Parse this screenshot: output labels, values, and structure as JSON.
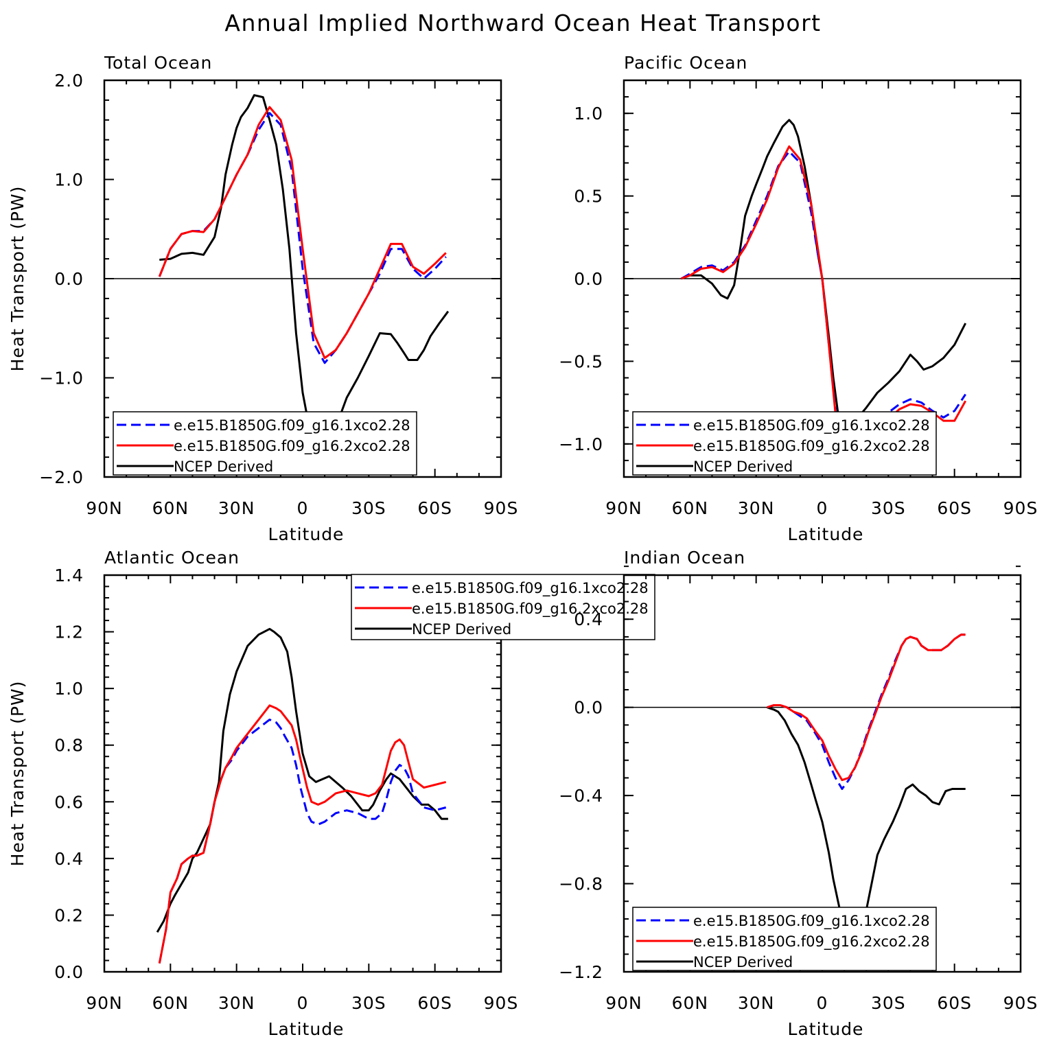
{
  "figure_title": "Annual Implied Northward Ocean Heat Transport",
  "colors": {
    "series1": "#0000ff",
    "series2": "#ff0000",
    "series3": "#000000",
    "zero_line": "#000000"
  },
  "chart_data": [
    {
      "type": "line",
      "panel_title": "Total Ocean",
      "xlabel": "Latitude",
      "ylabel": "Heat Transport (PW)",
      "x_ticks": [
        90,
        60,
        30,
        0,
        -30,
        -60,
        -90
      ],
      "x_tick_labels": [
        "90N",
        "60N",
        "30N",
        "0",
        "30S",
        "60S",
        "90S"
      ],
      "xlim": [
        90,
        -90
      ],
      "ylim": [
        -2.0,
        2.0
      ],
      "y_ticks": [
        -2.0,
        -1.0,
        0.0,
        1.0,
        2.0
      ],
      "y_tick_labels": [
        "−2.0",
        "−1.0",
        "0.0",
        "1.0",
        "2.0"
      ],
      "zero_line": true,
      "legend_position": "bottom-left",
      "series": [
        {
          "name": "e.e15.B1850G.f09_g16.1xco2.28",
          "style": "dashed",
          "x": [
            65,
            60,
            55,
            50,
            45,
            40,
            35,
            30,
            25,
            20,
            15,
            10,
            5,
            0,
            -5,
            -10,
            -15,
            -20,
            -25,
            -30,
            -35,
            -40,
            -45,
            -50,
            -55,
            -60,
            -65
          ],
          "y": [
            0.02,
            0.3,
            0.45,
            0.48,
            0.48,
            0.6,
            0.82,
            1.05,
            1.25,
            1.5,
            1.67,
            1.55,
            1.1,
            0.1,
            -0.65,
            -0.85,
            -0.72,
            -0.55,
            -0.35,
            -0.15,
            0.05,
            0.3,
            0.3,
            0.1,
            0.0,
            0.1,
            0.22
          ]
        },
        {
          "name": "e.e15.B1850G.f09_g16.2xco2.28",
          "style": "solid",
          "x": [
            65,
            60,
            55,
            50,
            45,
            40,
            35,
            30,
            25,
            20,
            15,
            10,
            5,
            0,
            -5,
            -10,
            -15,
            -20,
            -25,
            -30,
            -35,
            -40,
            -45,
            -50,
            -55,
            -60,
            -65
          ],
          "y": [
            0.02,
            0.3,
            0.45,
            0.48,
            0.47,
            0.6,
            0.82,
            1.05,
            1.25,
            1.55,
            1.73,
            1.6,
            1.2,
            0.3,
            -0.55,
            -0.8,
            -0.72,
            -0.55,
            -0.35,
            -0.15,
            0.1,
            0.35,
            0.35,
            0.12,
            0.05,
            0.15,
            0.26
          ]
        },
        {
          "name": "NCEP Derived",
          "style": "solid",
          "x": [
            65,
            60,
            55,
            50,
            45,
            40,
            37,
            35,
            32,
            30,
            28,
            25,
            22,
            18,
            15,
            12,
            9,
            6,
            3,
            0,
            -3,
            -5,
            -8,
            -12,
            -15,
            -20,
            -25,
            -30,
            -35,
            -40,
            -43,
            -46,
            -48,
            -52,
            -55,
            -58,
            -62,
            -66
          ],
          "y": [
            0.19,
            0.2,
            0.25,
            0.26,
            0.24,
            0.42,
            0.72,
            1.05,
            1.35,
            1.52,
            1.63,
            1.72,
            1.85,
            1.83,
            1.6,
            1.35,
            0.9,
            0.3,
            -0.55,
            -1.15,
            -1.5,
            -1.65,
            -1.68,
            -1.6,
            -1.5,
            -1.2,
            -1.0,
            -0.78,
            -0.55,
            -0.56,
            -0.65,
            -0.75,
            -0.82,
            -0.82,
            -0.72,
            -0.58,
            -0.45,
            -0.33
          ]
        }
      ]
    },
    {
      "type": "line",
      "panel_title": "Pacific Ocean",
      "xlabel": "Latitude",
      "ylabel": "",
      "x_ticks": [
        90,
        60,
        30,
        0,
        -30,
        -60,
        -90
      ],
      "x_tick_labels": [
        "90N",
        "60N",
        "30N",
        "0",
        "30S",
        "60S",
        "90S"
      ],
      "xlim": [
        90,
        -90
      ],
      "ylim": [
        -1.2,
        1.2
      ],
      "y_ticks": [
        -1.0,
        -0.5,
        0.0,
        0.5,
        1.0
      ],
      "y_tick_labels": [
        "−1.0",
        "−0.5",
        "0.0",
        "0.5",
        "1.0"
      ],
      "zero_line": true,
      "legend_position": "bottom-left",
      "series": [
        {
          "name": "e.e15.B1850G.f09_g16.1xco2.28",
          "style": "dashed",
          "x": [
            64,
            60,
            55,
            50,
            45,
            40,
            35,
            30,
            25,
            20,
            15,
            10,
            5,
            2,
            0,
            -3,
            -6,
            -10,
            -15,
            -20,
            -25,
            -30,
            -35,
            -40,
            -45,
            -50,
            -55,
            -60,
            -65
          ],
          "y": [
            0.0,
            0.03,
            0.07,
            0.08,
            0.05,
            0.1,
            0.2,
            0.35,
            0.5,
            0.68,
            0.77,
            0.7,
            0.4,
            0.15,
            0.0,
            -0.4,
            -0.8,
            -1.0,
            -1.02,
            -0.95,
            -0.88,
            -0.81,
            -0.76,
            -0.73,
            -0.75,
            -0.8,
            -0.84,
            -0.8,
            -0.7
          ]
        },
        {
          "name": "e.e15.B1850G.f09_g16.2xco2.28",
          "style": "solid",
          "x": [
            64,
            60,
            55,
            50,
            45,
            40,
            35,
            30,
            25,
            20,
            15,
            10,
            5,
            2,
            0,
            -3,
            -6,
            -10,
            -15,
            -20,
            -25,
            -30,
            -35,
            -40,
            -45,
            -50,
            -55,
            -60,
            -65
          ],
          "y": [
            0.0,
            0.02,
            0.06,
            0.07,
            0.04,
            0.09,
            0.19,
            0.33,
            0.48,
            0.67,
            0.8,
            0.72,
            0.45,
            0.18,
            0.0,
            -0.4,
            -0.82,
            -1.03,
            -1.08,
            -1.01,
            -0.93,
            -0.85,
            -0.79,
            -0.76,
            -0.77,
            -0.81,
            -0.86,
            -0.86,
            -0.74
          ]
        },
        {
          "name": "NCEP Derived",
          "style": "solid",
          "x": [
            64,
            60,
            55,
            50,
            46,
            43,
            40,
            37,
            35,
            32,
            30,
            27,
            25,
            22,
            18,
            15,
            13,
            11,
            8,
            5,
            2,
            0,
            -3,
            -5,
            -7,
            -10,
            -15,
            -20,
            -25,
            -30,
            -35,
            -40,
            -43,
            -46,
            -50,
            -55,
            -60,
            -65
          ],
          "y": [
            0.0,
            0.02,
            0.02,
            -0.03,
            -0.1,
            -0.12,
            -0.04,
            0.2,
            0.38,
            0.5,
            0.57,
            0.67,
            0.74,
            0.82,
            0.92,
            0.96,
            0.93,
            0.86,
            0.68,
            0.45,
            0.15,
            0.0,
            -0.35,
            -0.6,
            -0.8,
            -0.92,
            -0.86,
            -0.78,
            -0.69,
            -0.63,
            -0.56,
            -0.46,
            -0.5,
            -0.55,
            -0.53,
            -0.48,
            -0.4,
            -0.27
          ]
        }
      ]
    },
    {
      "type": "line",
      "panel_title": "Atlantic Ocean",
      "xlabel": "Latitude",
      "ylabel": "Heat Transport (PW)",
      "x_ticks": [
        90,
        60,
        30,
        0,
        -30,
        -60,
        -90
      ],
      "x_tick_labels": [
        "90N",
        "60N",
        "30N",
        "0",
        "30S",
        "60S",
        "90S"
      ],
      "xlim": [
        90,
        -90
      ],
      "ylim": [
        0.0,
        1.4
      ],
      "y_ticks": [
        0.0,
        0.2,
        0.4,
        0.6,
        0.8,
        1.0,
        1.2,
        1.4
      ],
      "y_tick_labels": [
        "0.0",
        "0.2",
        "0.4",
        "0.6",
        "0.8",
        "1.0",
        "1.2",
        "1.4"
      ],
      "zero_line": false,
      "legend_position": "top-right",
      "series": [
        {
          "name": "e.e15.B1850G.f09_g16.1xco2.28",
          "style": "dashed",
          "x": [
            65,
            62,
            60,
            57,
            55,
            52,
            50,
            48,
            45,
            42,
            40,
            37,
            35,
            32,
            30,
            25,
            20,
            15,
            12,
            10,
            8,
            5,
            3,
            1,
            -2,
            -4,
            -7,
            -10,
            -15,
            -20,
            -25,
            -30,
            -33,
            -36,
            -38,
            -40,
            -42,
            -44,
            -46,
            -48,
            -50,
            -55,
            -60,
            -65
          ],
          "y": [
            0.03,
            0.15,
            0.28,
            0.33,
            0.38,
            0.4,
            0.41,
            0.41,
            0.42,
            0.52,
            0.6,
            0.68,
            0.72,
            0.75,
            0.78,
            0.83,
            0.86,
            0.89,
            0.88,
            0.86,
            0.83,
            0.79,
            0.73,
            0.65,
            0.56,
            0.53,
            0.52,
            0.53,
            0.56,
            0.57,
            0.56,
            0.54,
            0.54,
            0.56,
            0.61,
            0.67,
            0.71,
            0.73,
            0.72,
            0.69,
            0.63,
            0.58,
            0.57,
            0.58
          ]
        },
        {
          "name": "e.e15.B1850G.f09_g16.2xco2.28",
          "style": "solid",
          "x": [
            65,
            62,
            60,
            57,
            55,
            52,
            50,
            48,
            45,
            42,
            40,
            37,
            35,
            32,
            30,
            25,
            20,
            15,
            12,
            10,
            8,
            5,
            3,
            1,
            -2,
            -4,
            -7,
            -10,
            -15,
            -20,
            -25,
            -30,
            -33,
            -36,
            -38,
            -40,
            -42,
            -44,
            -46,
            -48,
            -50,
            -55,
            -60,
            -65
          ],
          "y": [
            0.03,
            0.15,
            0.28,
            0.33,
            0.38,
            0.4,
            0.41,
            0.41,
            0.42,
            0.52,
            0.6,
            0.68,
            0.72,
            0.76,
            0.79,
            0.84,
            0.89,
            0.94,
            0.93,
            0.92,
            0.9,
            0.87,
            0.82,
            0.75,
            0.65,
            0.6,
            0.59,
            0.6,
            0.63,
            0.64,
            0.63,
            0.62,
            0.63,
            0.66,
            0.72,
            0.78,
            0.81,
            0.82,
            0.8,
            0.74,
            0.68,
            0.65,
            0.66,
            0.67
          ]
        },
        {
          "name": "NCEP Derived",
          "style": "solid",
          "x": [
            66,
            63,
            60,
            58,
            55,
            52,
            50,
            48,
            45,
            42,
            40,
            38,
            36,
            33,
            30,
            25,
            20,
            15,
            13,
            10,
            7,
            5,
            3,
            0,
            -3,
            -6,
            -9,
            -12,
            -15,
            -18,
            -22,
            -27,
            -30,
            -32,
            -35,
            -38,
            -40,
            -44,
            -47,
            -50,
            -54,
            -57,
            -60,
            -63,
            -66
          ],
          "y": [
            0.14,
            0.18,
            0.24,
            0.27,
            0.31,
            0.35,
            0.4,
            0.42,
            0.47,
            0.52,
            0.6,
            0.67,
            0.85,
            0.98,
            1.06,
            1.15,
            1.19,
            1.21,
            1.2,
            1.18,
            1.13,
            1.04,
            0.92,
            0.77,
            0.69,
            0.67,
            0.68,
            0.69,
            0.67,
            0.65,
            0.62,
            0.57,
            0.57,
            0.59,
            0.64,
            0.68,
            0.7,
            0.68,
            0.65,
            0.62,
            0.59,
            0.59,
            0.57,
            0.54,
            0.54
          ]
        }
      ]
    },
    {
      "type": "line",
      "panel_title": "Indian Ocean",
      "xlabel": "Latitude",
      "ylabel": "",
      "x_ticks": [
        90,
        60,
        30,
        0,
        -30,
        -60,
        -90
      ],
      "x_tick_labels": [
        "90N",
        "60N",
        "30N",
        "0",
        "30S",
        "60S",
        "90S"
      ],
      "xlim": [
        90,
        -90
      ],
      "ylim": [
        -1.2,
        0.6
      ],
      "y_ticks": [
        -1.2,
        -0.8,
        -0.4,
        0.0,
        0.4
      ],
      "y_tick_labels": [
        "−1.2",
        "−0.8",
        "−0.4",
        "0.0",
        "0.4"
      ],
      "zero_line": true,
      "legend_position": "bottom-left",
      "series": [
        {
          "name": "e.e15.B1850G.f09_g16.1xco2.28",
          "style": "dashed",
          "x": [
            25,
            22,
            19,
            16,
            13,
            10,
            7,
            5,
            3,
            0,
            -3,
            -6,
            -9,
            -12,
            -15,
            -18,
            -21,
            -24,
            -27,
            -30,
            -33,
            -36,
            -38,
            -40,
            -43,
            -45,
            -48,
            -51,
            -54,
            -57,
            -60,
            -63,
            -65
          ],
          "y": [
            0.0,
            0.01,
            0.01,
            0.0,
            -0.02,
            -0.04,
            -0.06,
            -0.09,
            -0.12,
            -0.17,
            -0.25,
            -0.32,
            -0.37,
            -0.33,
            -0.27,
            -0.19,
            -0.1,
            -0.02,
            0.06,
            0.13,
            0.21,
            0.28,
            0.31,
            0.32,
            0.31,
            0.28,
            0.26,
            0.26,
            0.26,
            0.28,
            0.31,
            0.33,
            0.33
          ]
        },
        {
          "name": "e.e15.B1850G.f09_g16.2xco2.28",
          "style": "solid",
          "x": [
            25,
            22,
            19,
            16,
            13,
            10,
            7,
            5,
            3,
            0,
            -3,
            -6,
            -9,
            -12,
            -15,
            -18,
            -21,
            -24,
            -27,
            -30,
            -33,
            -36,
            -38,
            -40,
            -43,
            -45,
            -48,
            -51,
            -54,
            -57,
            -60,
            -63,
            -65
          ],
          "y": [
            0.0,
            0.01,
            0.01,
            0.0,
            -0.02,
            -0.03,
            -0.05,
            -0.08,
            -0.11,
            -0.15,
            -0.22,
            -0.28,
            -0.33,
            -0.32,
            -0.27,
            -0.2,
            -0.11,
            -0.03,
            0.05,
            0.12,
            0.2,
            0.28,
            0.31,
            0.32,
            0.31,
            0.28,
            0.26,
            0.26,
            0.26,
            0.28,
            0.31,
            0.33,
            0.33
          ]
        },
        {
          "name": "NCEP Derived",
          "style": "solid",
          "x": [
            25,
            22,
            20,
            17,
            14,
            11,
            8,
            5,
            3,
            0,
            -3,
            -5,
            -8,
            -10,
            -13,
            -16,
            -20,
            -25,
            -28,
            -32,
            -35,
            -38,
            -41,
            -44,
            -47,
            -50,
            -53,
            -56,
            -59,
            -62,
            -65
          ],
          "y": [
            0.0,
            -0.01,
            -0.02,
            -0.06,
            -0.12,
            -0.17,
            -0.25,
            -0.35,
            -0.42,
            -0.52,
            -0.66,
            -0.78,
            -0.92,
            -1.0,
            -1.06,
            -1.03,
            -0.92,
            -0.67,
            -0.6,
            -0.52,
            -0.45,
            -0.37,
            -0.35,
            -0.38,
            -0.4,
            -0.43,
            -0.44,
            -0.38,
            -0.37,
            -0.37,
            -0.37
          ]
        }
      ]
    }
  ]
}
